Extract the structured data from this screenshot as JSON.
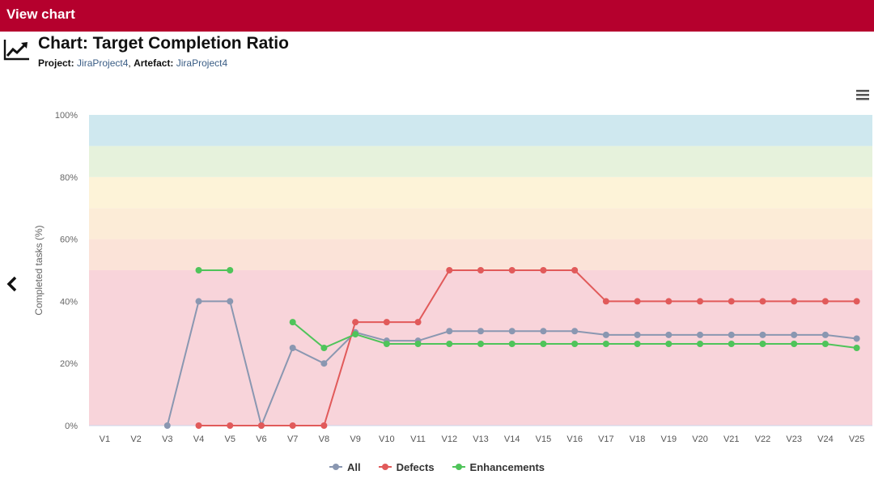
{
  "header": {
    "title": "View chart"
  },
  "page": {
    "title": "Chart: Target Completion Ratio",
    "project_label": "Project:",
    "project_value": "JiraProject4",
    "artefact_label": "Artefact:",
    "artefact_value": "JiraProject4",
    "separator": ","
  },
  "icons": {
    "chart": "trend-chart-icon",
    "menu": "hamburger-menu-icon",
    "back": "chevron-left-icon"
  },
  "chart_data": {
    "type": "line",
    "title": "",
    "xlabel": "",
    "ylabel": "Completed tasks (%)",
    "ylim": [
      0,
      100
    ],
    "yticks": [
      0,
      20,
      40,
      60,
      80,
      100
    ],
    "ytick_labels": [
      "0%",
      "20%",
      "40%",
      "60%",
      "80%",
      "100%"
    ],
    "grid": false,
    "legend_position": "bottom-center",
    "categories": [
      "V1",
      "V2",
      "V3",
      "V4",
      "V5",
      "V6",
      "V7",
      "V8",
      "V9",
      "V10",
      "V11",
      "V12",
      "V13",
      "V14",
      "V15",
      "V16",
      "V17",
      "V18",
      "V19",
      "V20",
      "V21",
      "V22",
      "V23",
      "V24",
      "V25"
    ],
    "bands": [
      {
        "from": 0,
        "to": 50,
        "color": "#f8d4da"
      },
      {
        "from": 50,
        "to": 60,
        "color": "#fbe3d8"
      },
      {
        "from": 60,
        "to": 70,
        "color": "#fcecd7"
      },
      {
        "from": 70,
        "to": 80,
        "color": "#fdf3d8"
      },
      {
        "from": 80,
        "to": 90,
        "color": "#e6f2dc"
      },
      {
        "from": 90,
        "to": 100,
        "color": "#cfe8ef"
      }
    ],
    "series": [
      {
        "name": "All",
        "color": "#8a97b1",
        "values": [
          null,
          null,
          0,
          40,
          40,
          0,
          25,
          20,
          30,
          27.3,
          27.3,
          30.4,
          30.4,
          30.4,
          30.4,
          30.4,
          29.2,
          29.2,
          29.2,
          29.2,
          29.2,
          29.2,
          29.2,
          29.2,
          28
        ]
      },
      {
        "name": "Defects",
        "color": "#e15a5a",
        "values": [
          null,
          null,
          null,
          0,
          0,
          0,
          0,
          0,
          33.3,
          33.3,
          33.3,
          50,
          50,
          50,
          50,
          50,
          40,
          40,
          40,
          40,
          40,
          40,
          40,
          40,
          40
        ]
      },
      {
        "name": "Enhancements",
        "color": "#4fc45a",
        "values": [
          null,
          null,
          null,
          50,
          50,
          null,
          33.3,
          25,
          29.4,
          26.3,
          26.3,
          26.3,
          26.3,
          26.3,
          26.3,
          26.3,
          26.3,
          26.3,
          26.3,
          26.3,
          26.3,
          26.3,
          26.3,
          26.3,
          25
        ]
      }
    ]
  }
}
